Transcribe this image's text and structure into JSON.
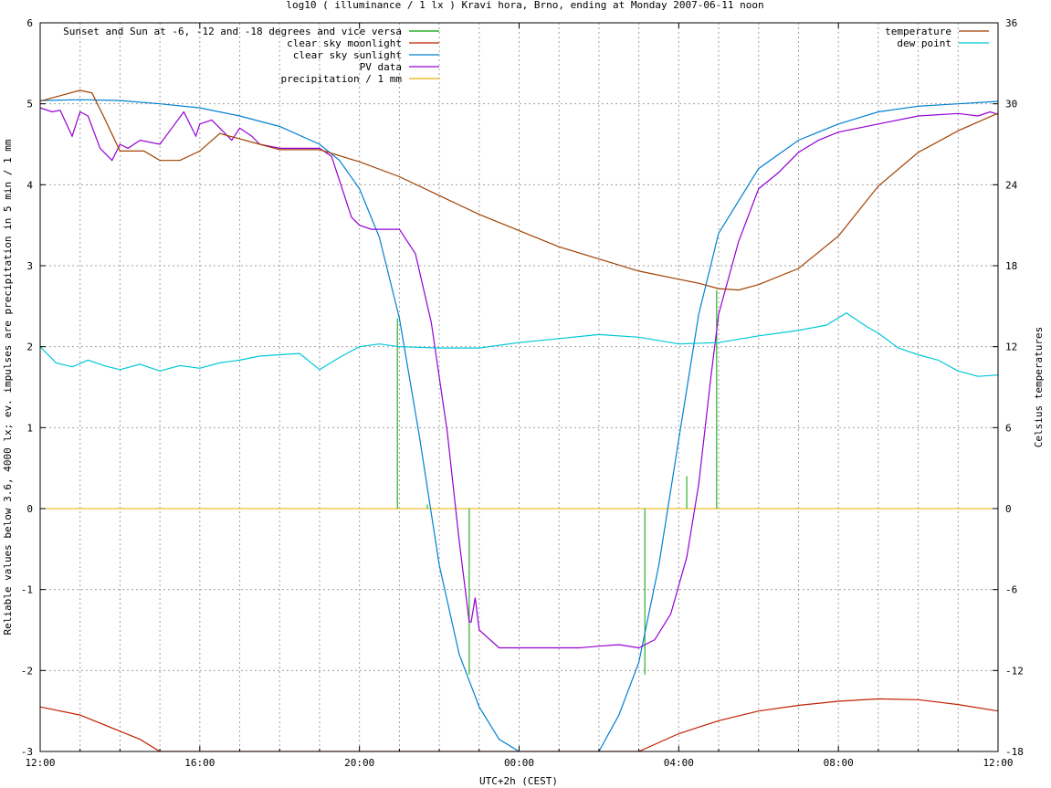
{
  "chart_data": {
    "type": "line",
    "title": "log10 ( illuminance / 1 lx ) Kravi hora, Brno, ending at Monday 2007-06-11 noon",
    "xlabel": "UTC+2h (CEST)",
    "ylabel": "Reliable values below 3.6, 4000 lx; ev. impulses are precipitation in 5 min / 1 mm",
    "y2label": "Celsius temperatures",
    "xlim": [
      0,
      24
    ],
    "ylim": [
      -3,
      6
    ],
    "y2lim": [
      -18,
      36
    ],
    "x_ticks": [
      {
        "x": 0,
        "label": "12:00"
      },
      {
        "x": 4,
        "label": "16:00"
      },
      {
        "x": 8,
        "label": "20:00"
      },
      {
        "x": 12,
        "label": "00:00"
      },
      {
        "x": 16,
        "label": "04:00"
      },
      {
        "x": 20,
        "label": "08:00"
      },
      {
        "x": 24,
        "label": "12:00"
      }
    ],
    "y_ticks": [
      {
        "y": -3,
        "label": "-3"
      },
      {
        "y": -2,
        "label": "-2"
      },
      {
        "y": -1,
        "label": "-1"
      },
      {
        "y": 0,
        "label": "0"
      },
      {
        "y": 1,
        "label": "1"
      },
      {
        "y": 2,
        "label": "2"
      },
      {
        "y": 3,
        "label": "3"
      },
      {
        "y": 4,
        "label": "4"
      },
      {
        "y": 5,
        "label": "5"
      },
      {
        "y": 6,
        "label": "6"
      }
    ],
    "y2_ticks": [
      {
        "y": -18,
        "label": "-18"
      },
      {
        "y": -12,
        "label": "-12"
      },
      {
        "y": -6,
        "label": "-6"
      },
      {
        "y": 0,
        "label": "0"
      },
      {
        "y": 6,
        "label": "6"
      },
      {
        "y": 12,
        "label": "12"
      },
      {
        "y": 18,
        "label": "18"
      },
      {
        "y": 24,
        "label": "24"
      },
      {
        "y": 30,
        "label": "30"
      },
      {
        "y": 36,
        "label": "36"
      }
    ],
    "grid": true,
    "legend_left": {
      "placement": "top-left",
      "entries": [
        {
          "label": "Sunset and Sun at -6, -12 and -18 degrees and vice versa",
          "color": "#00a000"
        },
        {
          "label": "clear sky moonlight",
          "color": "#c02000"
        },
        {
          "label": "clear sky sunlight",
          "color": "#0080d0"
        },
        {
          "label": "PV data",
          "color": "#9400d3"
        },
        {
          "label": "precipitation / 1 mm",
          "color": "#e8b000"
        }
      ]
    },
    "legend_right": {
      "placement": "top-right",
      "entries": [
        {
          "label": "temperature",
          "color": "#a04000"
        },
        {
          "label": "dew point",
          "color": "#00c8d8"
        }
      ]
    },
    "series": [
      {
        "name": "clear sky sunlight",
        "axis": "y",
        "color": "#0080d0",
        "x": [
          0,
          1,
          2,
          3,
          4,
          5,
          6,
          7,
          7.5,
          8,
          8.5,
          9,
          9.5,
          10,
          10.5,
          11,
          11.5,
          12,
          12.5,
          13,
          13.5,
          14,
          14.5,
          15,
          15.5,
          16,
          16.5,
          17,
          18,
          19,
          20,
          21,
          22,
          23,
          24
        ],
        "values": [
          5.04,
          5.05,
          5.04,
          5.0,
          4.95,
          4.85,
          4.72,
          4.5,
          4.3,
          3.95,
          3.35,
          2.35,
          0.9,
          -0.7,
          -1.8,
          -2.45,
          -2.85,
          -3.0,
          -3.2,
          -3.3,
          -3.2,
          -3.0,
          -2.55,
          -1.9,
          -0.7,
          0.85,
          2.4,
          3.4,
          4.2,
          4.55,
          4.75,
          4.9,
          4.97,
          5.0,
          5.03
        ]
      },
      {
        "name": "PV data",
        "axis": "y",
        "color": "#9400d3",
        "x": [
          0,
          0.3,
          0.5,
          0.8,
          1.0,
          1.2,
          1.5,
          1.8,
          2.0,
          2.2,
          2.5,
          3.0,
          3.3,
          3.6,
          3.9,
          4.0,
          4.3,
          4.5,
          4.8,
          5.0,
          5.3,
          5.5,
          6.0,
          6.5,
          7.0,
          7.3,
          7.6,
          7.8,
          8.0,
          8.3,
          8.6,
          9.0,
          9.4,
          9.8,
          10.2,
          10.5,
          10.75,
          10.8,
          10.9,
          11.0,
          11.5,
          12.0,
          12.5,
          13.0,
          13.5,
          14.0,
          14.5,
          15.0,
          15.4,
          15.8,
          16.2,
          16.5,
          16.8,
          17.0,
          17.5,
          18.0,
          18.5,
          19.0,
          19.5,
          20.0,
          21.0,
          22.0,
          23.0,
          23.5,
          23.8,
          24.0
        ],
        "values": [
          4.95,
          4.9,
          4.92,
          4.6,
          4.9,
          4.85,
          4.45,
          4.3,
          4.5,
          4.45,
          4.55,
          4.5,
          4.7,
          4.9,
          4.6,
          4.75,
          4.8,
          4.7,
          4.55,
          4.7,
          4.6,
          4.5,
          4.45,
          4.45,
          4.45,
          4.35,
          3.9,
          3.6,
          3.5,
          3.45,
          3.45,
          3.45,
          3.15,
          2.3,
          0.95,
          -0.4,
          -1.4,
          -1.4,
          -1.1,
          -1.5,
          -1.72,
          -1.72,
          -1.72,
          -1.72,
          -1.72,
          -1.7,
          -1.68,
          -1.72,
          -1.62,
          -1.3,
          -0.6,
          0.3,
          1.6,
          2.4,
          3.3,
          3.95,
          4.15,
          4.4,
          4.55,
          4.65,
          4.75,
          4.85,
          4.88,
          4.85,
          4.9,
          4.87
        ]
      },
      {
        "name": "clear sky moonlight",
        "axis": "y",
        "color": "#c02000",
        "x": [
          0,
          1,
          2,
          2.5,
          3.0,
          15.0,
          16.0,
          17,
          18,
          19,
          20,
          21,
          22,
          23,
          24
        ],
        "values": [
          -2.45,
          -2.55,
          -2.75,
          -2.85,
          -3.0,
          -3.0,
          -2.78,
          -2.62,
          -2.5,
          -2.43,
          -2.38,
          -2.35,
          -2.36,
          -2.42,
          -2.5
        ]
      },
      {
        "name": "temperature",
        "axis": "y2",
        "color": "#a04000",
        "x": [
          0,
          0.5,
          1.0,
          1.3,
          1.6,
          2.0,
          2.3,
          2.6,
          3.0,
          3.5,
          4.0,
          4.5,
          5.0,
          5.5,
          6.0,
          7.0,
          8.0,
          9.0,
          10.0,
          11.0,
          12.0,
          13.0,
          14.0,
          15.0,
          16.0,
          16.5,
          17.0,
          17.5,
          18.0,
          19.0,
          20.0,
          21.0,
          22.0,
          23.0,
          24.0
        ],
        "values": [
          30.2,
          30.6,
          31.0,
          30.8,
          29.0,
          26.5,
          26.5,
          26.5,
          25.8,
          25.8,
          26.5,
          27.8,
          27.4,
          27.0,
          26.6,
          26.6,
          25.7,
          24.6,
          23.2,
          21.8,
          20.6,
          19.4,
          18.5,
          17.6,
          17.0,
          16.7,
          16.3,
          16.2,
          16.6,
          17.8,
          20.2,
          23.9,
          26.4,
          28.0,
          29.3
        ]
      },
      {
        "name": "dew point",
        "axis": "y2",
        "color": "#00c8d8",
        "x": [
          0,
          0.4,
          0.8,
          1.2,
          1.6,
          2.0,
          2.5,
          3.0,
          3.5,
          4.0,
          4.5,
          5.0,
          5.5,
          6.0,
          6.5,
          7.0,
          7.5,
          8.0,
          8.5,
          9.0,
          10.0,
          11.0,
          12.0,
          13.0,
          14.0,
          15.0,
          16.0,
          17.0,
          18.0,
          19.0,
          19.7,
          20.2,
          20.7,
          21.0,
          21.5,
          22.0,
          22.5,
          23.0,
          23.5,
          24.0
        ],
        "values": [
          12.0,
          10.8,
          10.5,
          11.0,
          10.6,
          10.3,
          10.7,
          10.2,
          10.6,
          10.4,
          10.8,
          11.0,
          11.3,
          11.4,
          11.5,
          10.3,
          11.2,
          12.0,
          12.2,
          12.0,
          11.9,
          11.9,
          12.3,
          12.6,
          12.9,
          12.7,
          12.2,
          12.3,
          12.8,
          13.2,
          13.6,
          14.5,
          13.5,
          13.0,
          11.9,
          11.4,
          11.0,
          10.2,
          9.8,
          9.9
        ]
      }
    ],
    "precipitation": {
      "name": "precipitation / 1 mm",
      "color": "#e8b000",
      "value": 0
    },
    "sun_markers": {
      "name": "Sunset and Sun at -6, -12 and -18 degrees and vice versa",
      "color": "#00a000",
      "lines": [
        {
          "x": 8.95,
          "top": 2.35
        },
        {
          "x": 9.7,
          "top": 0.05
        },
        {
          "x": 10.75,
          "top": -2.05
        },
        {
          "x": 15.15,
          "top": -2.05
        },
        {
          "x": 16.2,
          "top": 0.4
        },
        {
          "x": 16.95,
          "top": 2.7
        }
      ]
    }
  }
}
